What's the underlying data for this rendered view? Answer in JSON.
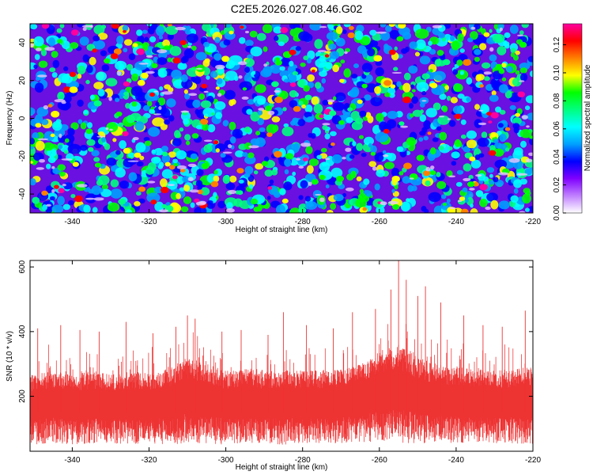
{
  "title": "C2E5.2026.027.08.46.G02",
  "chart_data": [
    {
      "type": "heatmap",
      "title": "C2E5.2026.027.08.46.G02",
      "xlabel": "Height of straight line (km)",
      "ylabel": "Frequency (Hz)",
      "xlim": [
        -351,
        -220
      ],
      "ylim": [
        -50,
        50
      ],
      "xticks": [
        -340,
        -320,
        -300,
        -280,
        -260,
        -240,
        -220
      ],
      "yticks": [
        -40,
        -20,
        0,
        20,
        40
      ],
      "colorbar": {
        "label": "Normalized spectral amplitude",
        "range": [
          0,
          0.135
        ],
        "ticks": [
          "0.00",
          "0.02",
          "0.04",
          "0.06",
          "0.08",
          "0.10",
          "0.12"
        ],
        "colors": [
          "#ffffff",
          "#c080ff",
          "#8000ff",
          "#0000ff",
          "#00a0ff",
          "#00ffff",
          "#00ff80",
          "#00ff00",
          "#ffff00",
          "#ff8000",
          "#ff0000",
          "#ff00a0"
        ]
      }
    },
    {
      "type": "line",
      "xlabel": "Height of straight line (km)",
      "ylabel": "SNR (10 * v/v)",
      "xlim": [
        -351,
        -220
      ],
      "ylim": [
        30,
        620
      ],
      "xticks": [
        -340,
        -320,
        -300,
        -280,
        -260,
        -240,
        -220
      ],
      "yticks": [
        200,
        400,
        600
      ],
      "series": [
        {
          "name": "SNR",
          "color": "#ee3333",
          "band_x": [
            -350,
            -345,
            -340,
            -335,
            -330,
            -325,
            -320,
            -315,
            -310,
            -305,
            -300,
            -295,
            -290,
            -285,
            -280,
            -275,
            -270,
            -265,
            -260,
            -255,
            -250,
            -245,
            -240,
            -235,
            -230,
            -225,
            -220
          ],
          "band_low": [
            50,
            55,
            50,
            55,
            55,
            50,
            55,
            50,
            55,
            55,
            50,
            55,
            55,
            50,
            55,
            55,
            55,
            55,
            60,
            55,
            55,
            55,
            55,
            55,
            55,
            55,
            50
          ],
          "band_high": [
            270,
            280,
            265,
            280,
            270,
            275,
            275,
            285,
            320,
            300,
            280,
            285,
            280,
            285,
            280,
            280,
            285,
            300,
            340,
            360,
            320,
            300,
            290,
            285,
            280,
            285,
            290
          ],
          "peaks": [
            {
              "x": -349,
              "y": 410
            },
            {
              "x": -343,
              "y": 420
            },
            {
              "x": -338,
              "y": 405
            },
            {
              "x": -333,
              "y": 400
            },
            {
              "x": -326,
              "y": 430
            },
            {
              "x": -319,
              "y": 395
            },
            {
              "x": -313,
              "y": 415
            },
            {
              "x": -310,
              "y": 450
            },
            {
              "x": -308,
              "y": 440
            },
            {
              "x": -301,
              "y": 400
            },
            {
              "x": -296,
              "y": 405
            },
            {
              "x": -289,
              "y": 390
            },
            {
              "x": -285,
              "y": 460
            },
            {
              "x": -279,
              "y": 420
            },
            {
              "x": -272,
              "y": 410
            },
            {
              "x": -267,
              "y": 460
            },
            {
              "x": -261,
              "y": 470
            },
            {
              "x": -257,
              "y": 530
            },
            {
              "x": -255,
              "y": 620
            },
            {
              "x": -253,
              "y": 560
            },
            {
              "x": -250,
              "y": 510
            },
            {
              "x": -248,
              "y": 540
            },
            {
              "x": -244,
              "y": 490
            },
            {
              "x": -238,
              "y": 450
            },
            {
              "x": -233,
              "y": 420
            },
            {
              "x": -228,
              "y": 415
            },
            {
              "x": -222,
              "y": 465
            }
          ]
        }
      ]
    }
  ]
}
